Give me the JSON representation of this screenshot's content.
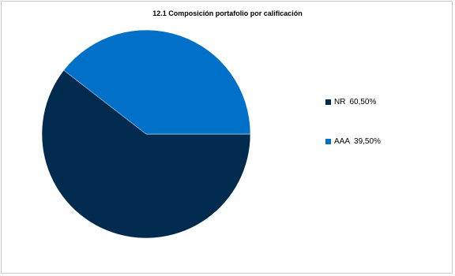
{
  "chart_data": {
    "type": "pie",
    "title": "12.1 Composición portafolio por calificación",
    "slices": [
      {
        "name": "NR",
        "value": 60.5,
        "label": "60,50%",
        "color": "#002a4e"
      },
      {
        "name": "AAA",
        "value": 39.5,
        "label": "39,50%",
        "color": "#0070c8"
      }
    ],
    "legend_position": "right"
  }
}
